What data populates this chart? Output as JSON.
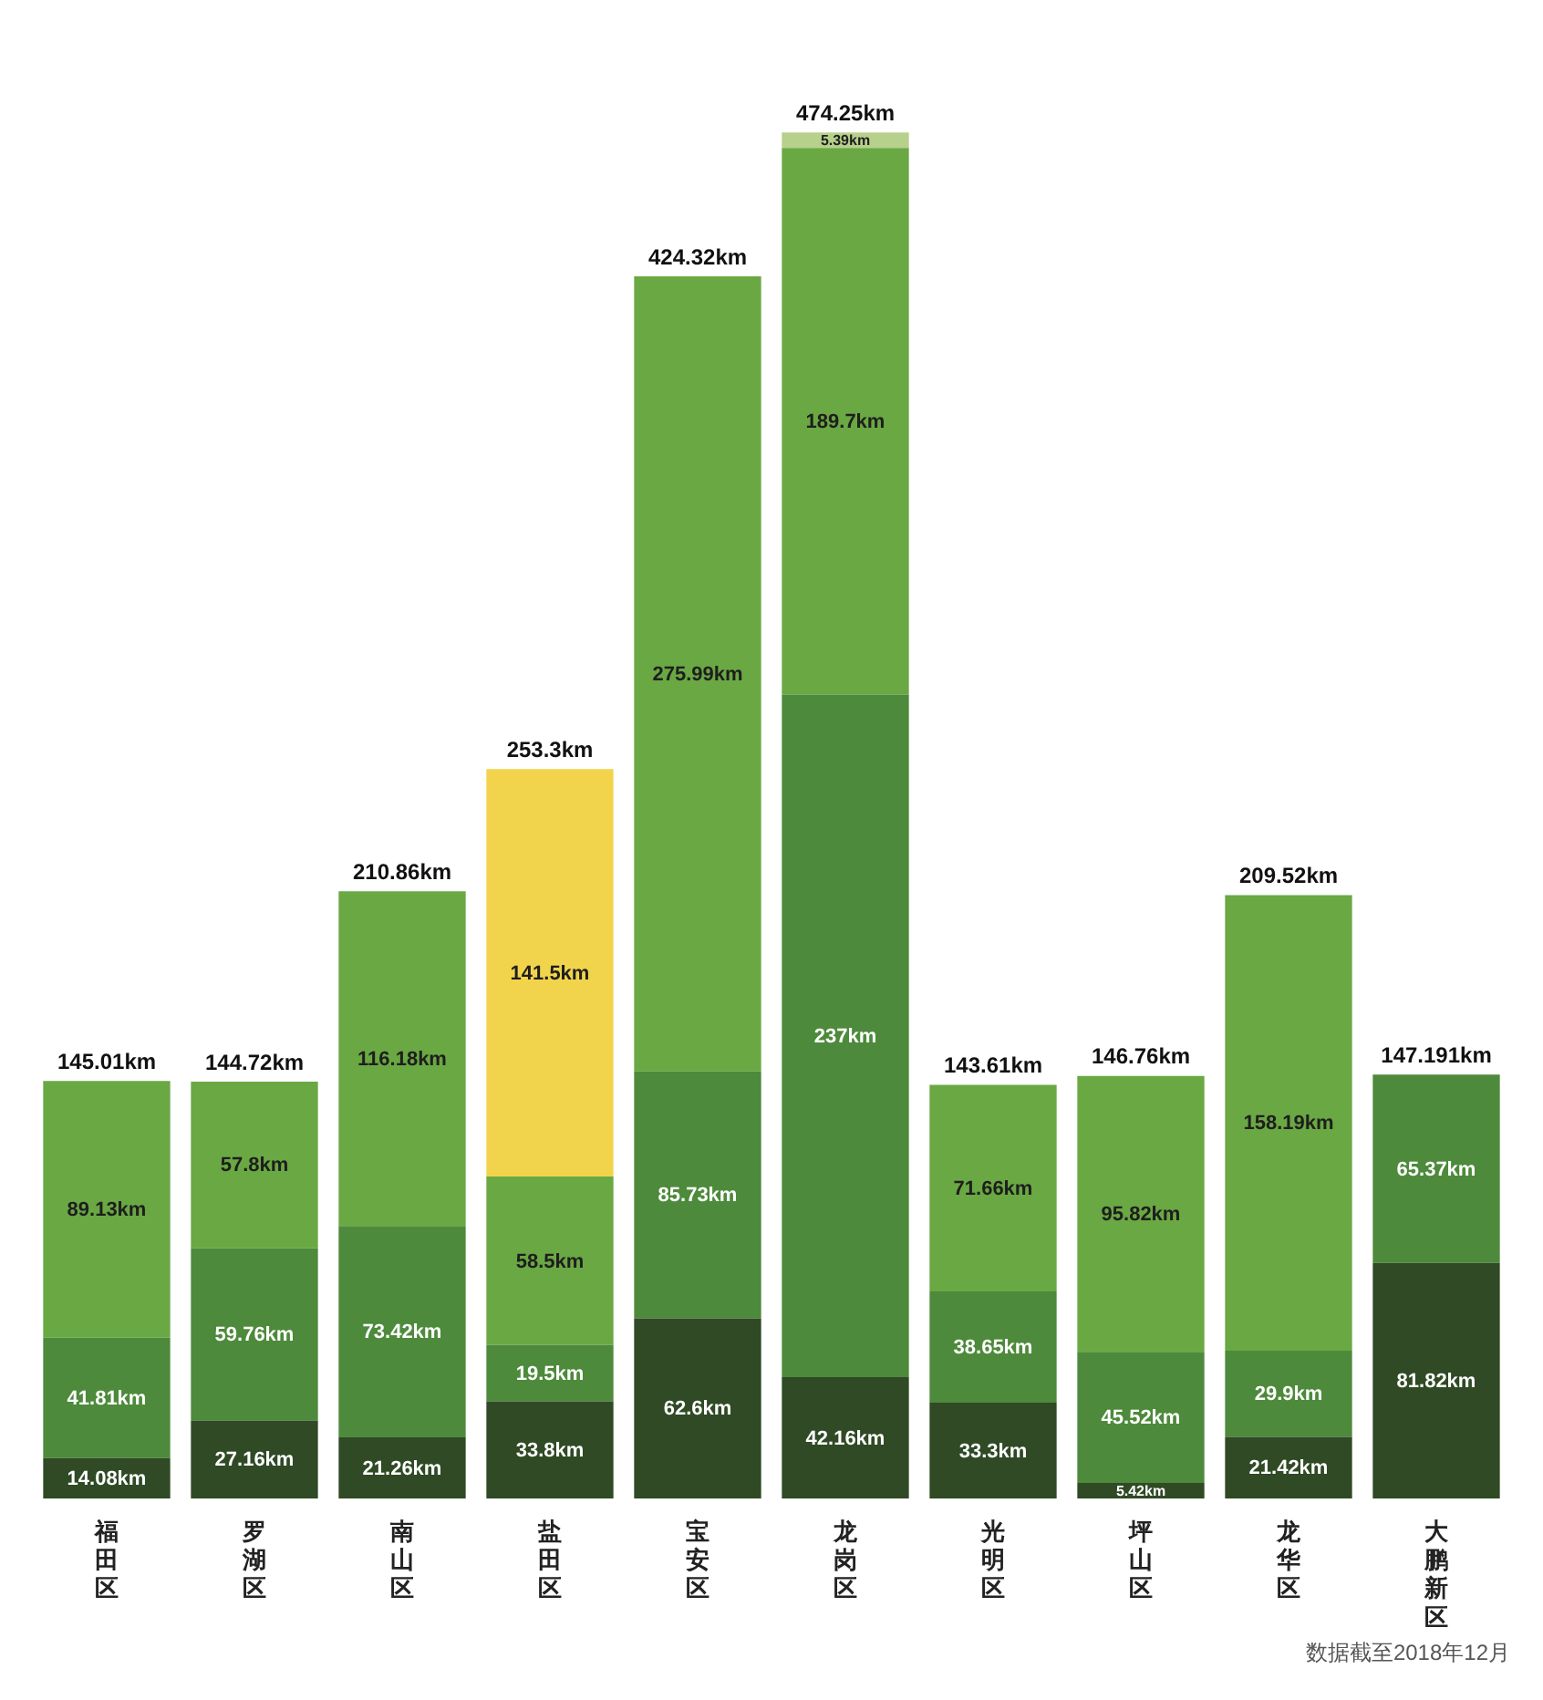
{
  "chart_data": {
    "type": "bar",
    "stacked": true,
    "categories": [
      "福田区",
      "罗湖区",
      "南山区",
      "盐田区",
      "宝安区",
      "龙岗区",
      "光明区",
      "坪山区",
      "龙华区",
      "大鹏新区"
    ],
    "series": [
      {
        "color": "#2f4a25",
        "values": [
          14.08,
          27.16,
          21.26,
          33.8,
          62.6,
          42.16,
          33.3,
          5.42,
          21.42,
          81.82
        ],
        "value_labels": [
          "14.08km",
          "27.16km",
          "21.26km",
          "33.8km",
          "62.6km",
          "42.16km",
          "33.3km",
          "5.42km",
          "21.42km",
          "81.82km"
        ]
      },
      {
        "color": "#4d8a3b",
        "values": [
          41.81,
          59.76,
          73.42,
          19.5,
          85.73,
          237,
          38.65,
          45.52,
          29.9,
          65.37
        ],
        "value_labels": [
          "41.81km",
          "59.76km",
          "73.42km",
          "19.5km",
          "85.73km",
          "237km",
          "38.65km",
          "45.52km",
          "29.9km",
          "65.37km"
        ]
      },
      {
        "color": "#6aa843",
        "values": [
          89.13,
          57.8,
          116.18,
          58.5,
          275.99,
          189.7,
          71.66,
          95.82,
          158.19,
          null
        ],
        "value_labels": [
          "89.13km",
          "57.8km",
          "116.18km",
          "58.5km",
          "275.99km",
          "189.7km",
          "71.66km",
          "95.82km",
          "158.19km",
          null
        ]
      },
      {
        "color": "#f2d44c",
        "values": [
          null,
          null,
          null,
          141.5,
          null,
          null,
          null,
          null,
          null,
          null
        ],
        "value_labels": [
          null,
          null,
          null,
          "141.5km",
          null,
          null,
          null,
          null,
          null,
          null
        ]
      },
      {
        "color": "#b7d08c",
        "values": [
          null,
          null,
          null,
          null,
          null,
          5.39,
          null,
          null,
          null,
          null
        ],
        "value_labels": [
          null,
          null,
          null,
          null,
          null,
          "5.39km",
          null,
          null,
          null,
          null
        ]
      }
    ],
    "totals": [
      "145.01km",
      "144.72km",
      "210.86km",
      "253.3km",
      "424.32km",
      "474.25km",
      "143.61km",
      "146.76km",
      "209.52km",
      "147.191km"
    ],
    "annotations": [
      "数据截至2018年12月"
    ]
  }
}
